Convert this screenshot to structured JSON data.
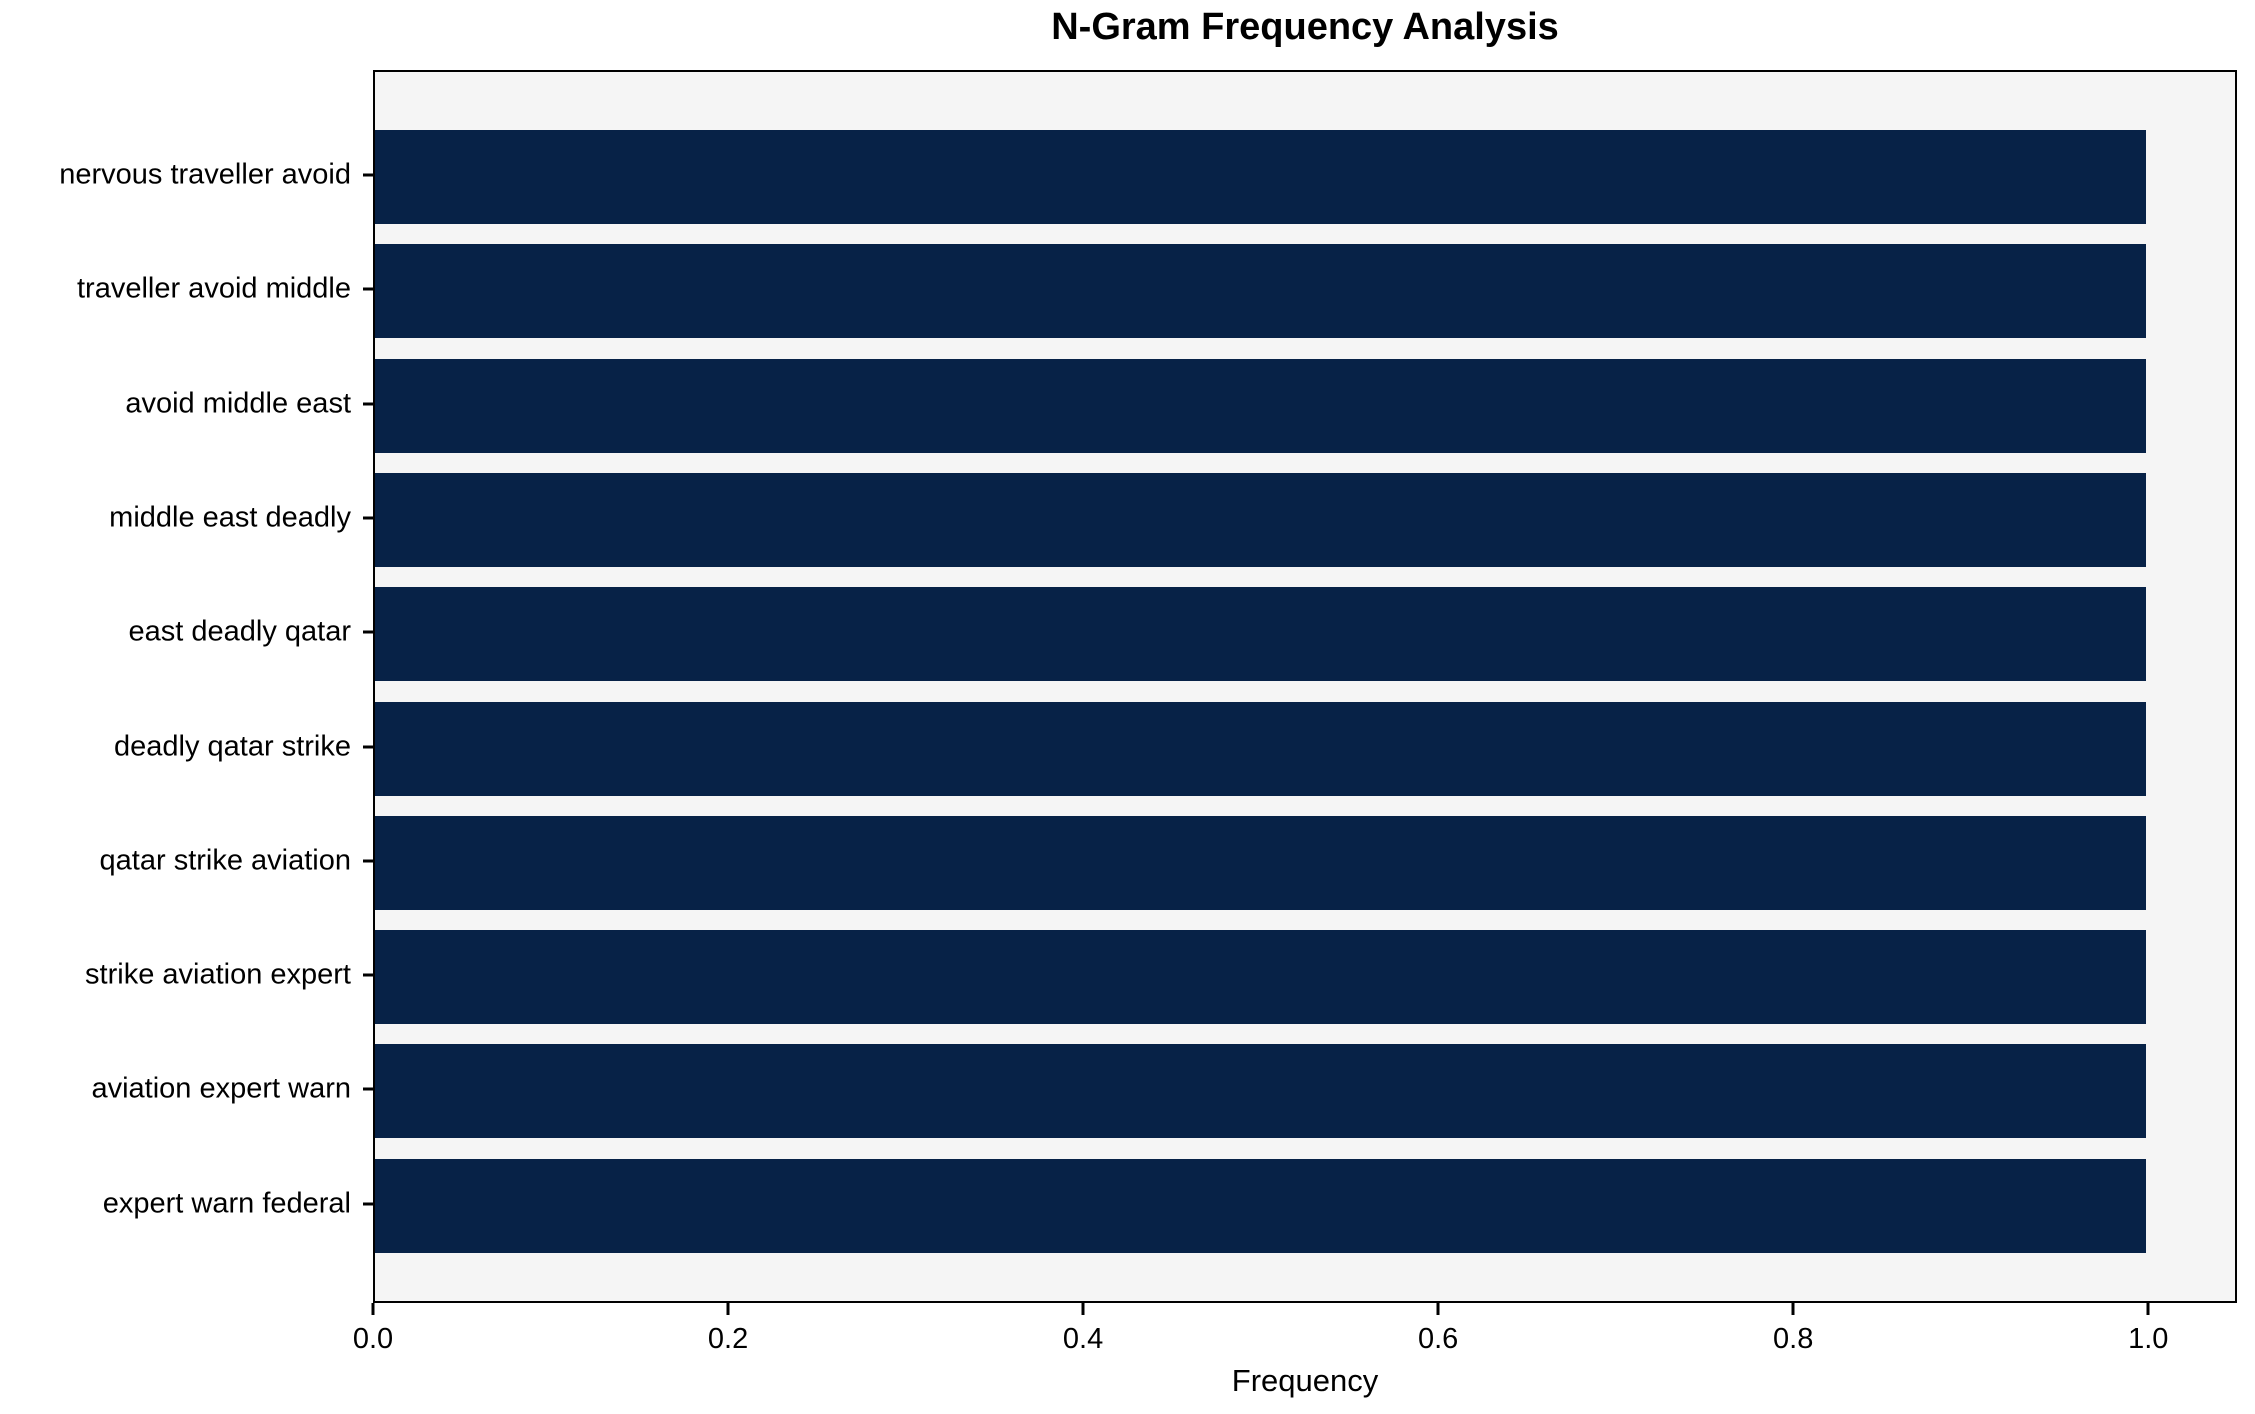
{
  "chart_data": {
    "type": "bar",
    "orientation": "horizontal",
    "title": "N-Gram Frequency Analysis",
    "xlabel": "Frequency",
    "ylabel": "",
    "categories": [
      "nervous traveller avoid",
      "traveller avoid middle",
      "avoid middle east",
      "middle east deadly",
      "east deadly qatar",
      "deadly qatar strike",
      "qatar strike aviation",
      "strike aviation expert",
      "aviation expert warn",
      "expert warn federal"
    ],
    "values": [
      1.0,
      1.0,
      1.0,
      1.0,
      1.0,
      1.0,
      1.0,
      1.0,
      1.0,
      1.0
    ],
    "xlim": [
      0,
      1.05
    ],
    "xticks": [
      "0.0",
      "0.2",
      "0.4",
      "0.6",
      "0.8",
      "1.0"
    ],
    "xtick_values": [
      0.0,
      0.2,
      0.4,
      0.6,
      0.8,
      1.0
    ],
    "grid": false,
    "legend": null,
    "colors": {
      "bar": "#072247",
      "plot_background": "#f5f5f5",
      "figure_background": "#ffffff",
      "axis": "#000000",
      "text": "#000000"
    }
  }
}
